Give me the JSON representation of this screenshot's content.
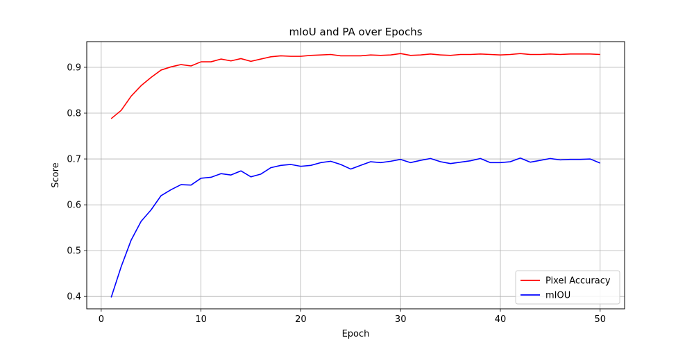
{
  "chart_data": {
    "type": "line",
    "title": "mIoU and PA over Epochs",
    "xlabel": "Epoch",
    "ylabel": "Score",
    "xlim": [
      -1.45,
      52.45
    ],
    "ylim": [
      0.373,
      0.956
    ],
    "xticks": [
      0,
      10,
      20,
      30,
      40,
      50
    ],
    "yticks": [
      0.4,
      0.5,
      0.6,
      0.7,
      0.8,
      0.9
    ],
    "grid": true,
    "legend_position": "lower-right",
    "series": [
      {
        "name": "Pixel Accuracy",
        "color": "#ff0000",
        "x": [
          1,
          2,
          3,
          4,
          5,
          6,
          7,
          8,
          9,
          10,
          11,
          12,
          13,
          14,
          15,
          16,
          17,
          18,
          19,
          20,
          21,
          22,
          23,
          24,
          25,
          26,
          27,
          28,
          29,
          30,
          31,
          32,
          33,
          34,
          35,
          36,
          37,
          38,
          39,
          40,
          41,
          42,
          43,
          44,
          45,
          46,
          47,
          48,
          49,
          50
        ],
        "values": [
          0.788,
          0.806,
          0.837,
          0.86,
          0.878,
          0.894,
          0.901,
          0.906,
          0.903,
          0.912,
          0.912,
          0.918,
          0.914,
          0.919,
          0.913,
          0.918,
          0.923,
          0.925,
          0.924,
          0.924,
          0.926,
          0.927,
          0.928,
          0.925,
          0.925,
          0.925,
          0.927,
          0.926,
          0.927,
          0.93,
          0.926,
          0.927,
          0.929,
          0.927,
          0.926,
          0.928,
          0.928,
          0.929,
          0.928,
          0.927,
          0.928,
          0.93,
          0.928,
          0.928,
          0.929,
          0.928,
          0.929,
          0.929,
          0.929,
          0.928
        ]
      },
      {
        "name": "mIOU",
        "color": "#0000ff",
        "x": [
          1,
          2,
          3,
          4,
          5,
          6,
          7,
          8,
          9,
          10,
          11,
          12,
          13,
          14,
          15,
          16,
          17,
          18,
          19,
          20,
          21,
          22,
          23,
          24,
          25,
          26,
          27,
          28,
          29,
          30,
          31,
          32,
          33,
          34,
          35,
          36,
          37,
          38,
          39,
          40,
          41,
          42,
          43,
          44,
          45,
          46,
          47,
          48,
          49,
          50
        ],
        "values": [
          0.398,
          0.465,
          0.523,
          0.564,
          0.589,
          0.62,
          0.633,
          0.644,
          0.643,
          0.658,
          0.66,
          0.668,
          0.665,
          0.674,
          0.661,
          0.667,
          0.681,
          0.686,
          0.688,
          0.684,
          0.686,
          0.692,
          0.695,
          0.688,
          0.678,
          0.686,
          0.694,
          0.692,
          0.695,
          0.699,
          0.692,
          0.697,
          0.701,
          0.694,
          0.69,
          0.693,
          0.696,
          0.701,
          0.692,
          0.692,
          0.694,
          0.702,
          0.693,
          0.697,
          0.701,
          0.698,
          0.699,
          0.699,
          0.7,
          0.691
        ]
      }
    ]
  }
}
